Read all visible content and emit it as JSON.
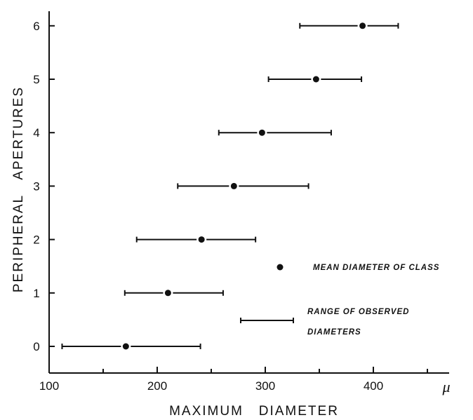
{
  "chart_data": {
    "type": "scatter",
    "xlabel": "MAXIMUM   DIAMETER",
    "ylabel": "PERIPHERAL   APERTURES",
    "x_unit": "μ",
    "xlim": [
      100,
      470
    ],
    "ylim": [
      -0.5,
      6.3
    ],
    "x_ticks": [
      100,
      200,
      300,
      400
    ],
    "x_minor_ticks": [
      150,
      250,
      350,
      450
    ],
    "y_ticks": [
      0,
      1,
      2,
      3,
      4,
      5,
      6
    ],
    "grid": false,
    "points": [
      {
        "y": 0,
        "mean": 171,
        "min": 112,
        "max": 240
      },
      {
        "y": 1,
        "mean": 210,
        "min": 170,
        "max": 261
      },
      {
        "y": 2,
        "mean": 241,
        "min": 181,
        "max": 291
      },
      {
        "y": 3,
        "mean": 271,
        "min": 219,
        "max": 340
      },
      {
        "y": 4,
        "mean": 297,
        "min": 257,
        "max": 361
      },
      {
        "y": 5,
        "mean": 347,
        "min": 303,
        "max": 389
      },
      {
        "y": 6,
        "mean": 390,
        "min": 332,
        "max": 423
      }
    ],
    "legend": {
      "placement": "lower-right",
      "mean_label": "MEAN  DIAMETER  OF CLASS",
      "range_label_line1": "RANGE  OF  OBSERVED",
      "range_label_line2": "DIAMETERS"
    }
  }
}
